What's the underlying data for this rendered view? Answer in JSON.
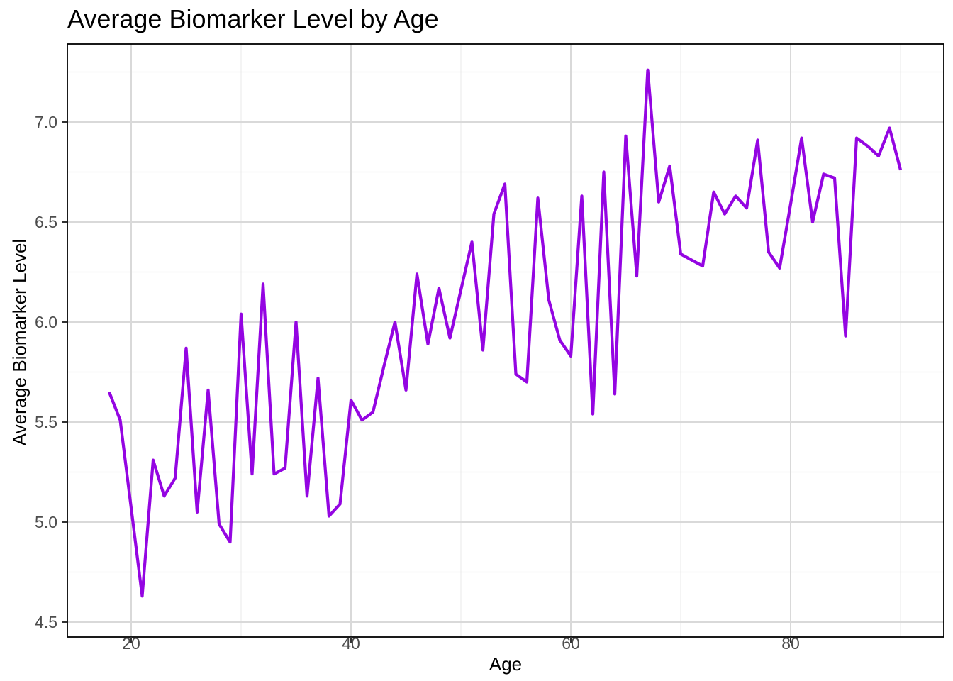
{
  "chart_data": {
    "type": "line",
    "title": "Average Biomarker Level by Age",
    "xlabel": "Age",
    "ylabel": "Average Biomarker Level",
    "legend": "none",
    "grid": "on",
    "line_color": "#9405E2",
    "panel_border_color": "#000000",
    "tick_label_color": "#4d4d4d",
    "major_grid_color": "#d9d9d9",
    "minor_grid_color": "#ececec",
    "x_ticks": [
      20,
      40,
      60,
      80
    ],
    "x_minor_ticks": [
      30,
      50,
      70,
      90
    ],
    "y_ticks": [
      4.5,
      5.0,
      5.5,
      6.0,
      6.5,
      7.0
    ],
    "y_tick_labels": [
      "4.5",
      "5.0",
      "5.5",
      "6.0",
      "6.5",
      "7.0"
    ],
    "y_minor_ticks": [
      4.75,
      5.25,
      5.75,
      6.25,
      6.75,
      7.25
    ],
    "xlim": [
      14.2,
      93.9
    ],
    "ylim": [
      4.42,
      7.39
    ],
    "x": [
      18,
      19,
      20,
      21,
      22,
      23,
      24,
      25,
      26,
      27,
      28,
      29,
      30,
      31,
      32,
      33,
      34,
      35,
      36,
      37,
      38,
      39,
      40,
      41,
      42,
      43,
      44,
      45,
      46,
      47,
      48,
      49,
      50,
      51,
      52,
      53,
      54,
      55,
      56,
      57,
      58,
      59,
      60,
      61,
      62,
      63,
      64,
      65,
      66,
      67,
      68,
      69,
      70,
      71,
      72,
      73,
      74,
      75,
      76,
      77,
      78,
      79,
      80,
      81,
      82,
      83,
      84,
      85,
      86,
      87,
      88,
      89,
      90
    ],
    "values": [
      5.65,
      5.51,
      5.07,
      4.63,
      5.31,
      5.13,
      5.22,
      5.87,
      5.05,
      5.66,
      4.99,
      4.9,
      6.04,
      5.24,
      6.19,
      5.24,
      5.27,
      6.0,
      5.13,
      5.72,
      5.03,
      5.09,
      5.61,
      5.51,
      5.55,
      5.78,
      6.0,
      5.66,
      6.24,
      5.89,
      6.17,
      5.92,
      6.16,
      6.4,
      5.86,
      6.54,
      6.69,
      5.74,
      5.7,
      6.62,
      6.11,
      5.91,
      5.83,
      6.63,
      5.54,
      6.75,
      5.64,
      6.93,
      6.23,
      7.26,
      6.6,
      6.78,
      6.34,
      6.31,
      6.28,
      6.65,
      6.54,
      6.63,
      6.57,
      6.91,
      6.35,
      6.27,
      6.59,
      6.92,
      6.5,
      6.74,
      6.72,
      5.93,
      6.92,
      6.88,
      6.83,
      6.97,
      6.76
    ]
  }
}
